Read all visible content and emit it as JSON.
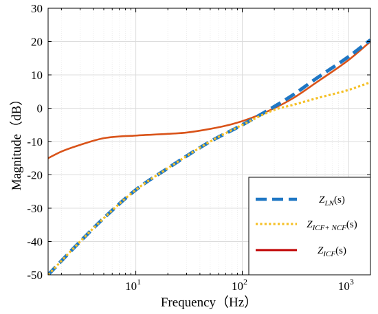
{
  "chart_data": {
    "type": "line",
    "title": "",
    "xlabel": "Frequency（Hz）",
    "ylabel": "Magnitude（dB）",
    "xscale": "log",
    "xlim": [
      1.5,
      1600
    ],
    "ylim": [
      -50,
      30
    ],
    "xticks": [
      {
        "value": 10,
        "base": "10",
        "exp": "1"
      },
      {
        "value": 100,
        "base": "10",
        "exp": "2"
      },
      {
        "value": 1000,
        "base": "10",
        "exp": "3"
      }
    ],
    "yticks": [
      {
        "value": 30,
        "label": "30"
      },
      {
        "value": 20,
        "label": "20"
      },
      {
        "value": 10,
        "label": "10"
      },
      {
        "value": 0,
        "label": "0"
      },
      {
        "value": -10,
        "label": "-10"
      },
      {
        "value": -20,
        "label": "-20"
      },
      {
        "value": -30,
        "label": "-30"
      },
      {
        "value": -40,
        "label": "-40"
      },
      {
        "value": -50,
        "label": "-50"
      }
    ],
    "grid": true,
    "legend_position": "bottom-right",
    "series": [
      {
        "name": "Z_LN(s)",
        "label_main": "Z",
        "label_sub": "LN",
        "label_tail": "(s)",
        "color": "#1f77c4",
        "style": "dashed",
        "points": [
          [
            1.5,
            -50
          ],
          [
            3,
            -40
          ],
          [
            5,
            -33
          ],
          [
            10,
            -24.5
          ],
          [
            20,
            -18
          ],
          [
            50,
            -10
          ],
          [
            100,
            -5
          ],
          [
            200,
            0.5
          ],
          [
            300,
            4
          ],
          [
            500,
            9
          ],
          [
            1000,
            15.5
          ],
          [
            1600,
            20.5
          ]
        ]
      },
      {
        "name": "Z_ICF+NCF(s)",
        "label_main": "Z",
        "label_sub": "ICF+ NCF",
        "label_tail": "(s)",
        "color": "#f5c026",
        "style": "dotted",
        "points": [
          [
            1.5,
            -50
          ],
          [
            3,
            -40
          ],
          [
            5,
            -33
          ],
          [
            10,
            -24.5
          ],
          [
            20,
            -18
          ],
          [
            50,
            -10
          ],
          [
            100,
            -5
          ],
          [
            200,
            -0.5
          ],
          [
            300,
            1
          ],
          [
            500,
            3
          ],
          [
            1000,
            5.5
          ],
          [
            1600,
            7.8
          ]
        ]
      },
      {
        "name": "Z_ICF(s)",
        "label_main": "Z",
        "label_sub": "ICF",
        "label_tail": "(s)",
        "color": "#d95319",
        "legend_color": "#c00000",
        "style": "solid",
        "points": [
          [
            1.5,
            -15
          ],
          [
            2,
            -13
          ],
          [
            3,
            -11
          ],
          [
            5,
            -9
          ],
          [
            10,
            -8.2
          ],
          [
            20,
            -7.7
          ],
          [
            30,
            -7.3
          ],
          [
            50,
            -6.2
          ],
          [
            80,
            -4.8
          ],
          [
            120,
            -3
          ],
          [
            200,
            0
          ],
          [
            300,
            3
          ],
          [
            500,
            7.8
          ],
          [
            1000,
            14.5
          ],
          [
            1600,
            20
          ]
        ]
      }
    ]
  }
}
